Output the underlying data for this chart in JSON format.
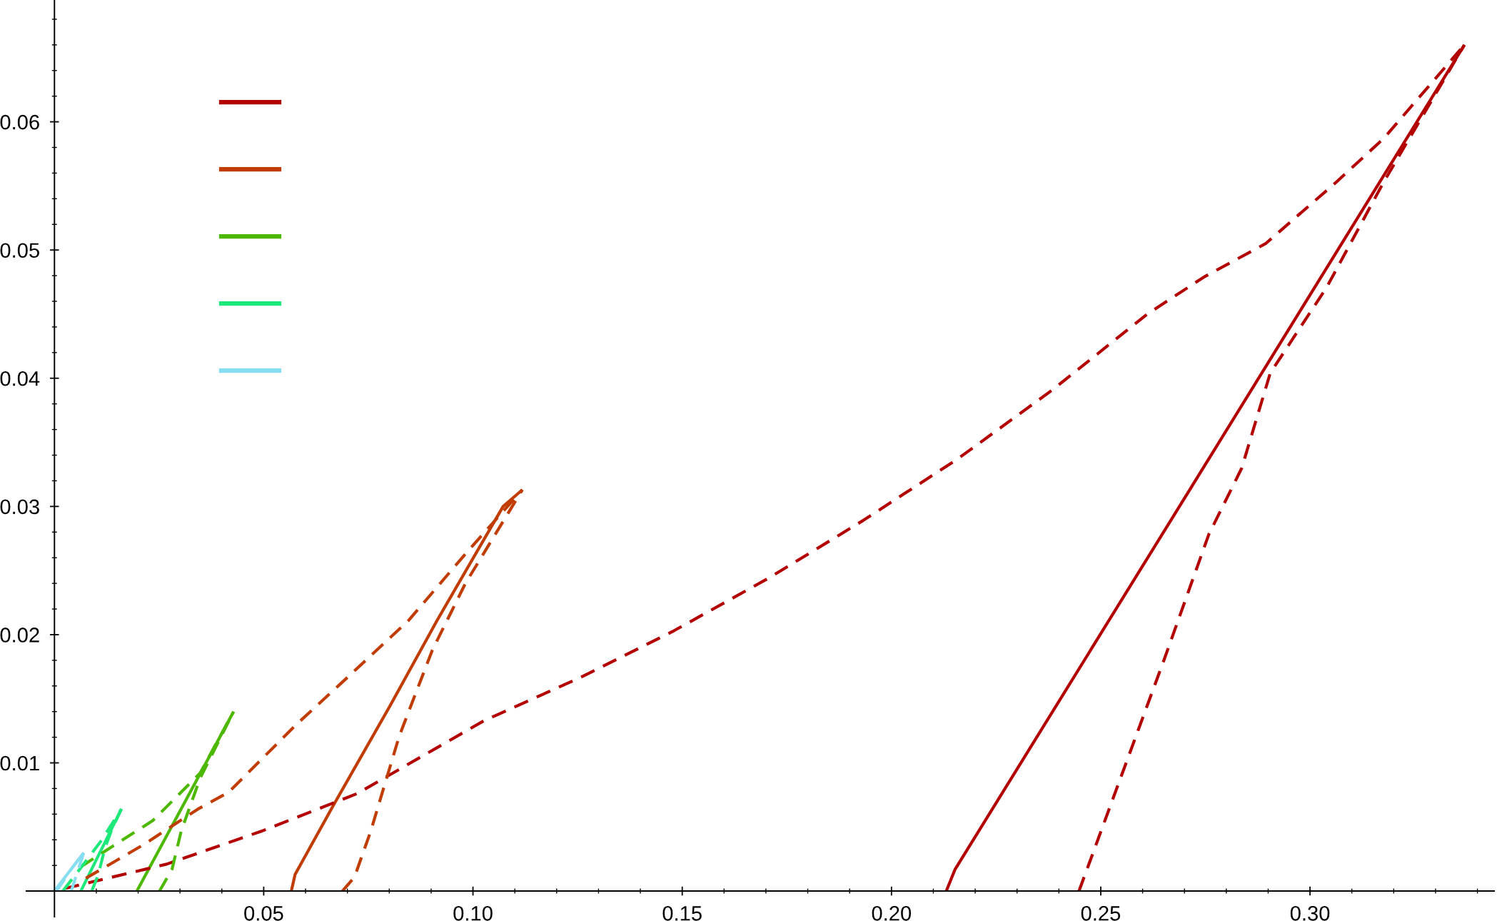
{
  "chart_data": {
    "type": "line",
    "xlim": [
      -0.0067,
      0.344
    ],
    "ylim": [
      -0.002,
      0.0695
    ],
    "xticks": [
      {
        "value": 0.01,
        "label": null
      },
      {
        "value": 0.02,
        "label": null
      },
      {
        "value": 0.03,
        "label": null
      },
      {
        "value": 0.04,
        "label": null
      },
      {
        "value": 0.05,
        "label": "0.05"
      },
      {
        "value": 0.06,
        "label": null
      },
      {
        "value": 0.07,
        "label": null
      },
      {
        "value": 0.08,
        "label": null
      },
      {
        "value": 0.09,
        "label": null
      },
      {
        "value": 0.1,
        "label": "0.10"
      },
      {
        "value": 0.11,
        "label": null
      },
      {
        "value": 0.12,
        "label": null
      },
      {
        "value": 0.13,
        "label": null
      },
      {
        "value": 0.14,
        "label": null
      },
      {
        "value": 0.15,
        "label": "0.15"
      },
      {
        "value": 0.16,
        "label": null
      },
      {
        "value": 0.17,
        "label": null
      },
      {
        "value": 0.18,
        "label": null
      },
      {
        "value": 0.19,
        "label": null
      },
      {
        "value": 0.2,
        "label": "0.20"
      },
      {
        "value": 0.21,
        "label": null
      },
      {
        "value": 0.22,
        "label": null
      },
      {
        "value": 0.23,
        "label": null
      },
      {
        "value": 0.24,
        "label": null
      },
      {
        "value": 0.25,
        "label": "0.25"
      },
      {
        "value": 0.26,
        "label": null
      },
      {
        "value": 0.27,
        "label": null
      },
      {
        "value": 0.28,
        "label": null
      },
      {
        "value": 0.29,
        "label": null
      },
      {
        "value": 0.3,
        "label": "0.30"
      },
      {
        "value": 0.31,
        "label": null
      },
      {
        "value": 0.32,
        "label": null
      },
      {
        "value": 0.33,
        "label": null
      },
      {
        "value": 0.34,
        "label": null
      }
    ],
    "yticks": [
      {
        "value": 0.002,
        "label": null
      },
      {
        "value": 0.004,
        "label": null
      },
      {
        "value": 0.006,
        "label": null
      },
      {
        "value": 0.008,
        "label": null
      },
      0.01,
      {
        "value": 0.012,
        "label": null
      },
      {
        "value": 0.014,
        "label": null
      },
      {
        "value": 0.016,
        "label": null
      },
      {
        "value": 0.018,
        "label": null
      },
      0.02,
      {
        "value": 0.022,
        "label": null
      },
      {
        "value": 0.024,
        "label": null
      },
      {
        "value": 0.026,
        "label": null
      },
      {
        "value": 0.028,
        "label": null
      },
      0.03,
      {
        "value": 0.032,
        "label": null
      },
      {
        "value": 0.034,
        "label": null
      },
      {
        "value": 0.036,
        "label": null
      },
      {
        "value": 0.038,
        "label": null
      },
      0.04,
      {
        "value": 0.042,
        "label": null
      },
      {
        "value": 0.044,
        "label": null
      },
      {
        "value": 0.046,
        "label": null
      },
      {
        "value": 0.048,
        "label": null
      },
      0.05,
      {
        "value": 0.052,
        "label": null
      },
      {
        "value": 0.054,
        "label": null
      },
      {
        "value": 0.056,
        "label": null
      },
      {
        "value": 0.058,
        "label": null
      },
      0.06,
      {
        "value": 0.062,
        "label": null
      },
      {
        "value": 0.064,
        "label": null
      },
      {
        "value": 0.066,
        "label": null
      },
      {
        "value": 0.068,
        "label": null
      }
    ],
    "grid": false,
    "marker": "none",
    "series": [
      {
        "color": "#b30000",
        "line_style": "solid",
        "x": [
          0.2131,
          0.2152,
          0.2688,
          0.3369
        ],
        "values": [
          0,
          0.0017,
          0.03,
          0.066
        ]
      },
      {
        "color": "#c03c00",
        "line_style": "solid",
        "x": [
          0.0566,
          0.0575,
          0.0665,
          0.0801,
          0.0914,
          0.1072,
          0.1118
        ],
        "values": [
          0,
          0.0013,
          0.0066,
          0.0144,
          0.0211,
          0.03,
          0.0313
        ]
      },
      {
        "color": "#4cb800",
        "line_style": "solid",
        "x": [
          0.0197,
          0.0428
        ],
        "values": [
          0,
          0.014
        ]
      },
      {
        "color": "#1de87a",
        "line_style": "solid",
        "x": [
          0.0063,
          0.016
        ],
        "values": [
          0,
          0.0064
        ]
      },
      {
        "color": "#87def0",
        "line_style": "solid",
        "x": [
          0.0,
          0.007
        ],
        "values": [
          0,
          0.003
        ]
      },
      {
        "color": "#b30000",
        "line_style": "dashed",
        "x": [
          0.0024,
          0.0268,
          0.0497,
          0.0723,
          0.1027,
          0.1253,
          0.148,
          0.1706,
          0.1932,
          0.2158,
          0.2385,
          0.2611,
          0.2747,
          0.2894,
          0.3063,
          0.3176,
          0.3369
        ],
        "values": [
          0.0002,
          0.0021,
          0.0047,
          0.0076,
          0.0133,
          0.0166,
          0.0203,
          0.0244,
          0.0289,
          0.0337,
          0.0391,
          0.045,
          0.0479,
          0.0505,
          0.0553,
          0.0587,
          0.066
        ]
      },
      {
        "color": "#b30000",
        "line_style": "dashed",
        "x": [
          0.2448,
          0.2652,
          0.2758,
          0.2837,
          0.2905,
          0.304,
          0.3176,
          0.3369
        ],
        "values": [
          0,
          0.0181,
          0.0278,
          0.033,
          0.0404,
          0.0471,
          0.0553,
          0.066
        ]
      },
      {
        "color": "#c03c00",
        "line_style": "dashed",
        "x": [
          0.0075,
          0.0212,
          0.0343,
          0.0416,
          0.0575,
          0.0688,
          0.0846,
          0.0982,
          0.1118
        ],
        "values": [
          0.001,
          0.0036,
          0.0064,
          0.0077,
          0.0129,
          0.0163,
          0.0211,
          0.0263,
          0.0313
        ]
      },
      {
        "color": "#c03c00",
        "line_style": "dashed",
        "x": [
          0.0688,
          0.0717,
          0.0756,
          0.0824,
          0.0903,
          0.0982,
          0.1118
        ],
        "values": [
          0,
          0.0011,
          0.0047,
          0.0121,
          0.0188,
          0.024,
          0.0313
        ]
      },
      {
        "color": "#4cb800",
        "line_style": "dashed",
        "x": [
          0.0063,
          0.0235,
          0.0348,
          0.0428
        ],
        "values": [
          0.0019,
          0.0055,
          0.0092,
          0.014
        ]
      },
      {
        "color": "#4cb800",
        "line_style": "dashed",
        "x": [
          0.0251,
          0.0281,
          0.0303,
          0.0348,
          0.0428
        ],
        "values": [
          0,
          0.0017,
          0.0047,
          0.0088,
          0.014
        ]
      },
      {
        "color": "#1de87a",
        "line_style": "dashed",
        "x": [
          0.002,
          0.0058,
          0.0109,
          0.016
        ],
        "values": [
          0,
          0.0016,
          0.0038,
          0.0064
        ]
      },
      {
        "color": "#1de87a",
        "line_style": "dashed",
        "x": [
          0.0089,
          0.0104,
          0.0121,
          0.0138,
          0.016
        ],
        "values": [
          0,
          0.0012,
          0.0034,
          0.0049,
          0.0064
        ]
      },
      {
        "color": "#87def0",
        "line_style": "dashed",
        "x": [
          0.0005,
          0.004,
          0.007
        ],
        "values": [
          0,
          0.0017,
          0.003
        ]
      },
      {
        "color": "#87def0",
        "line_style": "dashed",
        "x": [
          0.004,
          0.0055,
          0.007
        ],
        "values": [
          0,
          0.0015,
          0.003
        ]
      }
    ]
  }
}
